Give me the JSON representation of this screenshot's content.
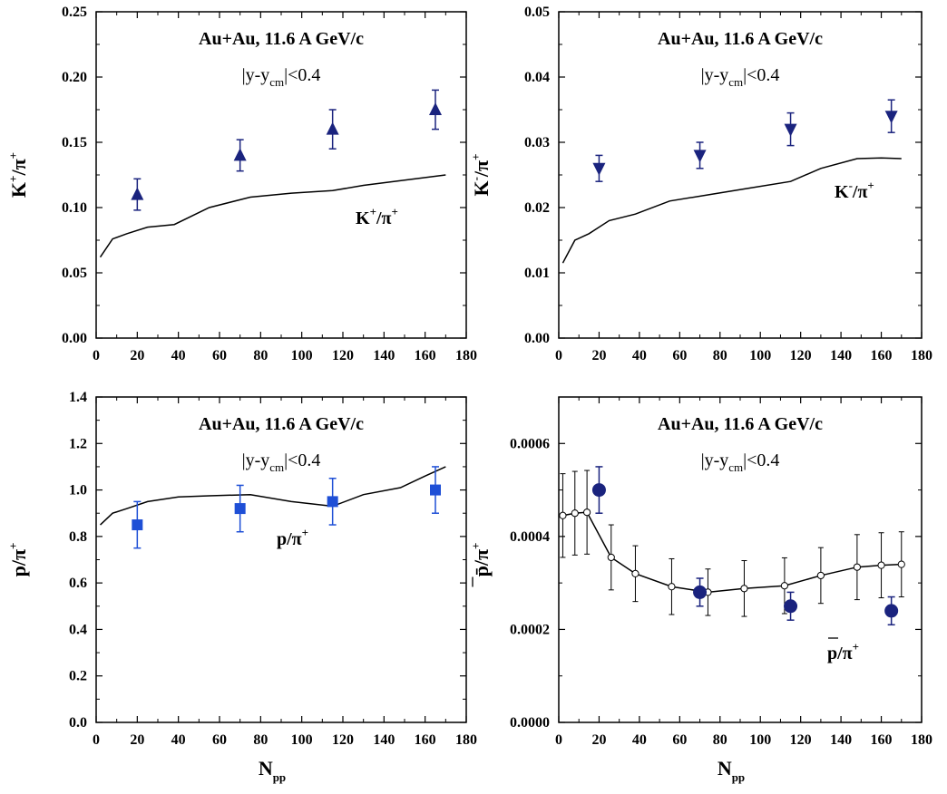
{
  "chart_data": [
    {
      "type": "scatter",
      "title": "Au+Au,  11.6 A GeV/c",
      "subtitle": "|y-y_cm|<0.4",
      "ylabel": "K+/π+",
      "xlabel": "",
      "xlim": [
        0,
        180
      ],
      "ylim": [
        0,
        0.25
      ],
      "xticks": [
        "0",
        "20",
        "40",
        "60",
        "80",
        "100",
        "120",
        "140",
        "160",
        "180"
      ],
      "yticks": [
        "0.00",
        "0.05",
        "0.10",
        "0.15",
        "0.20",
        "0.25"
      ],
      "series": [
        {
          "kind": "points",
          "marker": "triangle-up",
          "color": "#1a237e",
          "x": [
            20,
            70,
            115,
            165
          ],
          "y": [
            0.11,
            0.14,
            0.16,
            0.175
          ],
          "err": [
            0.012,
            0.012,
            0.015,
            0.015
          ]
        },
        {
          "kind": "line",
          "name": "K+/π+",
          "color": "#000000",
          "x": [
            2,
            8,
            15,
            25,
            38,
            55,
            75,
            95,
            115,
            130,
            150,
            170
          ],
          "y": [
            0.062,
            0.076,
            0.08,
            0.085,
            0.087,
            0.1,
            0.108,
            0.111,
            0.113,
            0.117,
            0.121,
            0.125
          ]
        }
      ]
    },
    {
      "type": "scatter",
      "title": "Au+Au,  11.6 A GeV/c",
      "subtitle": "|y-y_cm|<0.4",
      "ylabel": "K-/π+",
      "xlabel": "",
      "xlim": [
        0,
        180
      ],
      "ylim": [
        0,
        0.05
      ],
      "xticks": [
        "0",
        "20",
        "40",
        "60",
        "80",
        "100",
        "120",
        "140",
        "160",
        "180"
      ],
      "yticks": [
        "0.00",
        "0.01",
        "0.02",
        "0.03",
        "0.04",
        "0.05"
      ],
      "series": [
        {
          "kind": "points",
          "marker": "triangle-down",
          "color": "#1a237e",
          "x": [
            20,
            70,
            115,
            165
          ],
          "y": [
            0.026,
            0.028,
            0.032,
            0.034
          ],
          "err": [
            0.002,
            0.002,
            0.0025,
            0.0025
          ]
        },
        {
          "kind": "line",
          "name": "K-/π+",
          "color": "#000000",
          "x": [
            2,
            8,
            15,
            25,
            38,
            55,
            75,
            95,
            115,
            130,
            148,
            160,
            170
          ],
          "y": [
            0.0115,
            0.015,
            0.016,
            0.018,
            0.019,
            0.021,
            0.022,
            0.023,
            0.024,
            0.026,
            0.0275,
            0.0276,
            0.0275
          ]
        }
      ]
    },
    {
      "type": "scatter",
      "title": "Au+Au,  11.6 A GeV/c",
      "subtitle": "|y-y_cm|<0.4",
      "ylabel": "p/π+",
      "xlabel": "Npp",
      "xlim": [
        0,
        180
      ],
      "ylim": [
        0,
        1.4
      ],
      "xticks": [
        "0",
        "20",
        "40",
        "60",
        "80",
        "100",
        "120",
        "140",
        "160",
        "180"
      ],
      "yticks": [
        "0.0",
        "0.2",
        "0.4",
        "0.6",
        "0.8",
        "1.0",
        "1.2",
        "1.4"
      ],
      "series": [
        {
          "kind": "points",
          "marker": "square",
          "color": "#1e4fd6",
          "x": [
            20,
            70,
            115,
            165
          ],
          "y": [
            0.85,
            0.92,
            0.95,
            1.0
          ],
          "err": [
            0.1,
            0.1,
            0.1,
            0.1
          ]
        },
        {
          "kind": "line",
          "name": "p/π+",
          "color": "#000000",
          "x": [
            2,
            8,
            15,
            25,
            40,
            55,
            75,
            95,
            115,
            130,
            148,
            160,
            170
          ],
          "y": [
            0.85,
            0.9,
            0.92,
            0.95,
            0.97,
            0.975,
            0.98,
            0.95,
            0.93,
            0.98,
            1.01,
            1.06,
            1.1
          ]
        }
      ]
    },
    {
      "type": "scatter",
      "title": "Au+Au,  11.6 A GeV/c",
      "subtitle": "|y-y_cm|<0.4",
      "ylabel": "p̄/π+",
      "xlabel": "Npp",
      "xlim": [
        0,
        180
      ],
      "ylim": [
        0,
        0.0007
      ],
      "xticks": [
        "0",
        "20",
        "40",
        "60",
        "80",
        "100",
        "120",
        "140",
        "160",
        "180"
      ],
      "yticks": [
        "0.0000",
        "0.0002",
        "0.0004",
        "0.0006"
      ],
      "yticks_values": [
        0,
        0.0002,
        0.0004,
        0.0006
      ],
      "series": [
        {
          "kind": "points",
          "marker": "circle",
          "color": "#1a237e",
          "x": [
            20,
            70,
            115,
            165
          ],
          "y": [
            0.0005,
            0.00028,
            0.00025,
            0.00024
          ],
          "err": [
            5e-05,
            3e-05,
            3e-05,
            3e-05
          ]
        },
        {
          "kind": "line-points",
          "name": "p̄/π+",
          "color": "#000000",
          "marker": "open-circle",
          "x": [
            2,
            8,
            14,
            26,
            38,
            56,
            74,
            92,
            112,
            130,
            148,
            160,
            170
          ],
          "y": [
            0.000445,
            0.00045,
            0.000452,
            0.000355,
            0.00032,
            0.000292,
            0.00028,
            0.000288,
            0.000294,
            0.000316,
            0.000334,
            0.000338,
            0.00034
          ],
          "err": [
            9e-05,
            9e-05,
            9e-05,
            7e-05,
            6e-05,
            6e-05,
            5e-05,
            6e-05,
            6e-05,
            6e-05,
            7e-05,
            7e-05,
            7e-05
          ]
        }
      ]
    }
  ]
}
